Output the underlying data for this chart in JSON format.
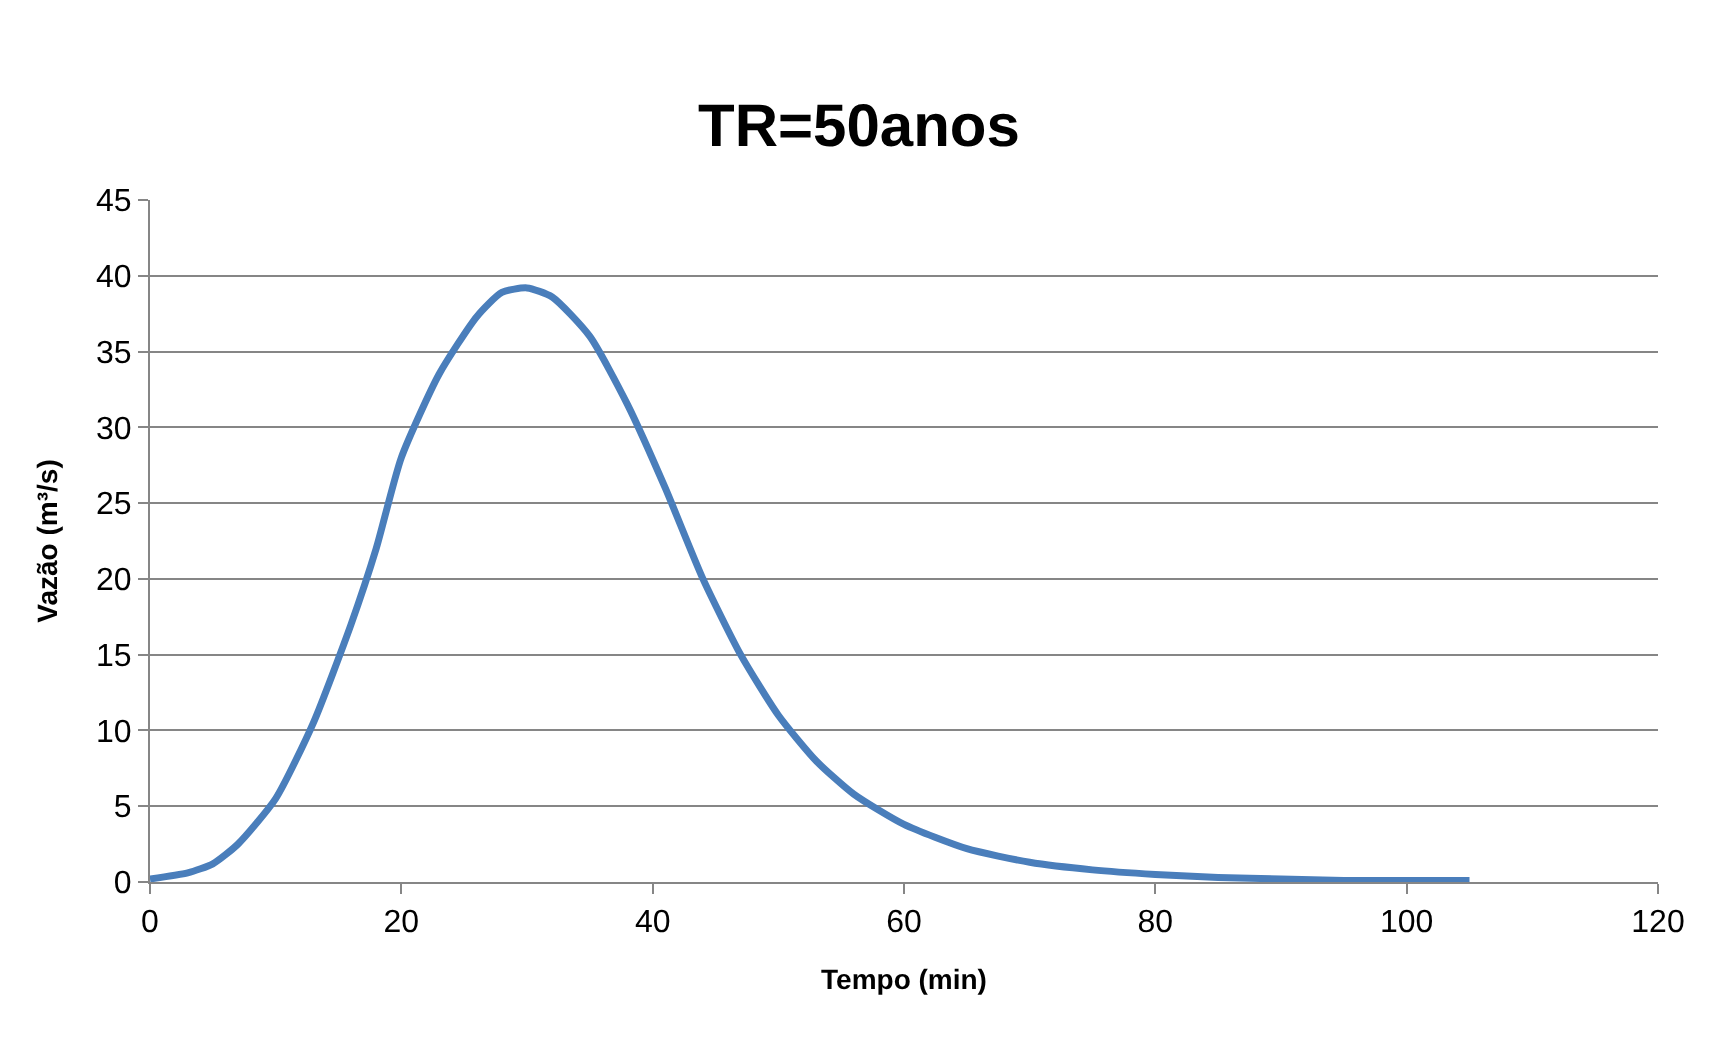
{
  "chart_data": {
    "type": "line",
    "title": "TR=50anos",
    "xlabel": "Tempo (min)",
    "ylabel": "Vazão (m³/s)",
    "x": [
      0,
      3,
      5,
      7,
      10,
      13,
      16,
      18,
      20,
      23,
      26,
      28,
      30,
      32,
      35,
      38,
      41,
      44,
      47,
      50,
      53,
      56,
      60,
      65,
      70,
      75,
      80,
      85,
      90,
      95,
      100,
      105
    ],
    "series": [
      {
        "color": "#4a7ebb",
        "values": [
          0.2,
          0.6,
          1.2,
          2.5,
          5.5,
          10.5,
          17,
          22,
          28,
          33.5,
          37.3,
          38.9,
          39.2,
          38.6,
          36,
          31.5,
          26,
          20,
          15,
          11,
          8,
          5.8,
          3.8,
          2.2,
          1.3,
          0.8,
          0.5,
          0.3,
          0.2,
          0.1,
          0.1,
          0.1
        ]
      }
    ],
    "xlim": [
      0,
      120
    ],
    "xticks": [
      0,
      20,
      40,
      60,
      80,
      100,
      120
    ],
    "ylim": [
      0,
      45
    ],
    "yticks": [
      0,
      5,
      10,
      15,
      20,
      25,
      30,
      35,
      40,
      45
    ],
    "grid": "y",
    "marker": "none",
    "line_style": "solid"
  }
}
